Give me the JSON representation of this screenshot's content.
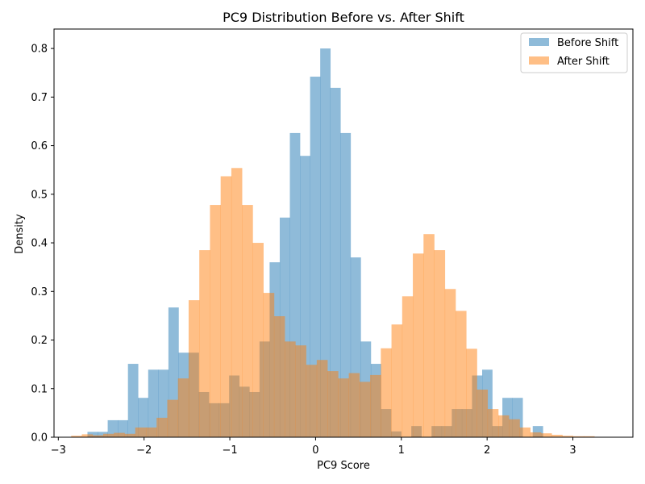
{
  "chart_data": {
    "type": "bar",
    "title": "PC9 Distribution Before vs. After Shift",
    "xlabel": "PC9 Score",
    "ylabel": "Density",
    "xlim": [
      -3.05,
      3.7
    ],
    "ylim": [
      0,
      0.84
    ],
    "xticks": [
      -3,
      -2,
      -1,
      0,
      1,
      2,
      3
    ],
    "xtick_labels": [
      "−3",
      "−2",
      "−1",
      "0",
      "1",
      "2",
      "3"
    ],
    "yticks": [
      0.0,
      0.1,
      0.2,
      0.3,
      0.4,
      0.5,
      0.6,
      0.7,
      0.8
    ],
    "ytick_labels": [
      "0.0",
      "0.1",
      "0.2",
      "0.3",
      "0.4",
      "0.5",
      "0.6",
      "0.7",
      "0.8"
    ],
    "grid": false,
    "legend_position": "top-right",
    "series": [
      {
        "name": "Before Shift",
        "color": "#1f77b4",
        "opacity": 0.5,
        "bin_start": -2.66,
        "bin_width": 0.118,
        "values": [
          0.011,
          0.011,
          0.035,
          0.035,
          0.151,
          0.081,
          0.139,
          0.139,
          0.267,
          0.174,
          0.174,
          0.093,
          0.07,
          0.07,
          0.127,
          0.104,
          0.093,
          0.197,
          0.36,
          0.452,
          0.626,
          0.579,
          0.742,
          0.8,
          0.719,
          0.626,
          0.37,
          0.197,
          0.151,
          0.058,
          0.012,
          0.0,
          0.023,
          0.0,
          0.023,
          0.023,
          0.058,
          0.058,
          0.127,
          0.139,
          0.023,
          0.081,
          0.081,
          0.0,
          0.023
        ]
      },
      {
        "name": "After Shift",
        "color": "#ff7f0e",
        "opacity": 0.5,
        "bin_start": -2.85,
        "bin_width": 0.1245,
        "values": [
          0.003,
          0.006,
          0.004,
          0.007,
          0.009,
          0.007,
          0.02,
          0.02,
          0.04,
          0.077,
          0.121,
          0.282,
          0.385,
          0.478,
          0.537,
          0.554,
          0.478,
          0.4,
          0.297,
          0.249,
          0.197,
          0.189,
          0.149,
          0.159,
          0.136,
          0.121,
          0.132,
          0.114,
          0.128,
          0.183,
          0.232,
          0.29,
          0.378,
          0.418,
          0.385,
          0.305,
          0.26,
          0.182,
          0.098,
          0.058,
          0.045,
          0.037,
          0.02,
          0.01,
          0.008,
          0.005,
          0.003,
          0.002,
          0.002
        ]
      }
    ]
  }
}
